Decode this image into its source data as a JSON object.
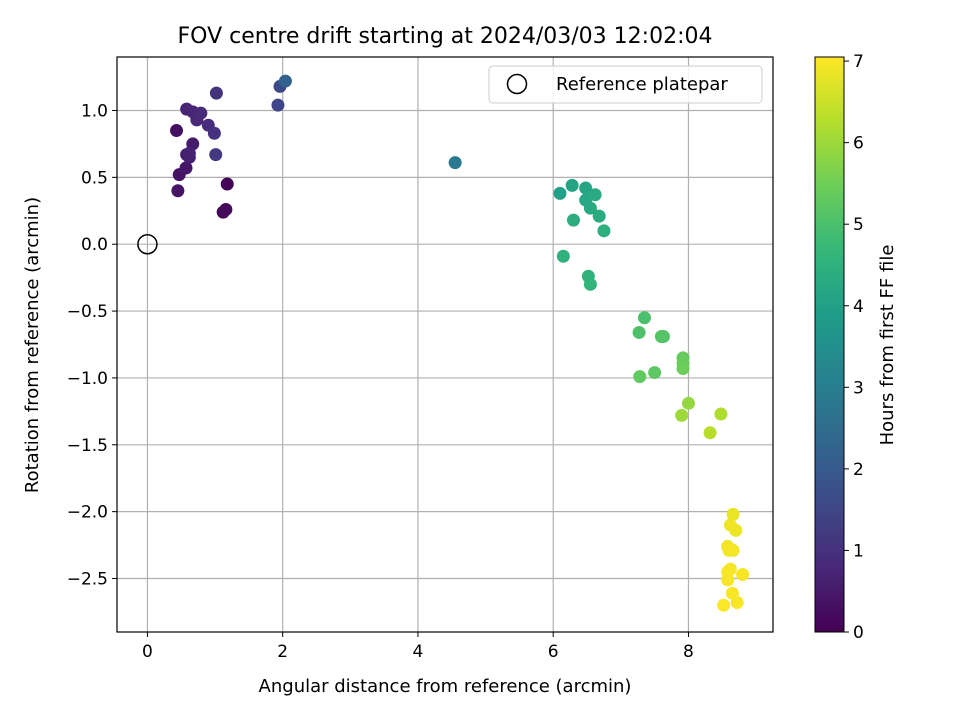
{
  "chart_data": {
    "type": "scatter",
    "title": "FOV centre drift starting at 2024/03/03 12:02:04",
    "xlabel": "Angular distance from reference (arcmin)",
    "ylabel": "Rotation from reference (arcmin)",
    "xlim": [
      -0.45,
      9.25
    ],
    "ylim": [
      -2.9,
      1.4
    ],
    "xticks": [
      0,
      2,
      4,
      6,
      8
    ],
    "xtick_labels": [
      "0",
      "2",
      "4",
      "6",
      "8"
    ],
    "yticks": [
      -2.5,
      -2.0,
      -1.5,
      -1.0,
      -0.5,
      0.0,
      0.5,
      1.0
    ],
    "ytick_labels": [
      "−2.5",
      "−2.0",
      "−1.5",
      "−1.0",
      "−0.5",
      "0.0",
      "0.5",
      "1.0"
    ],
    "grid": true,
    "legend": {
      "location": "top-right",
      "entries": [
        {
          "label": "Reference platepar",
          "marker": "open-circle"
        }
      ]
    },
    "reference_point": {
      "x": 0.0,
      "y": 0.0
    },
    "colorbar": {
      "label": "Hours from first FF file",
      "range": [
        0,
        7.05
      ],
      "ticks": [
        0,
        1,
        2,
        3,
        4,
        5,
        6,
        7
      ],
      "tick_labels": [
        "0",
        "1",
        "2",
        "3",
        "4",
        "5",
        "6",
        "7"
      ],
      "colormap": "viridis"
    },
    "colormap_stops": [
      "#440154",
      "#482878",
      "#3e4989",
      "#31688e",
      "#26828e",
      "#1f9e89",
      "#35b779",
      "#6ece58",
      "#b5de2b",
      "#fde725"
    ],
    "series": [
      {
        "points": [
          {
            "x": 1.18,
            "y": 0.45,
            "h": 0.05
          },
          {
            "x": 1.12,
            "y": 0.24,
            "h": 0.1
          },
          {
            "x": 1.16,
            "y": 0.26,
            "h": 0.15
          },
          {
            "x": 0.43,
            "y": 0.85,
            "h": 0.3
          },
          {
            "x": 0.47,
            "y": 0.52,
            "h": 0.35
          },
          {
            "x": 0.45,
            "y": 0.4,
            "h": 0.4
          },
          {
            "x": 0.57,
            "y": 0.57,
            "h": 0.45
          },
          {
            "x": 0.58,
            "y": 0.67,
            "h": 0.5
          },
          {
            "x": 0.67,
            "y": 0.75,
            "h": 0.55
          },
          {
            "x": 0.62,
            "y": 0.65,
            "h": 0.6
          },
          {
            "x": 0.62,
            "y": 0.68,
            "h": 0.65
          },
          {
            "x": 0.58,
            "y": 1.01,
            "h": 0.7
          },
          {
            "x": 0.67,
            "y": 0.99,
            "h": 0.75
          },
          {
            "x": 0.73,
            "y": 0.93,
            "h": 0.8
          },
          {
            "x": 0.79,
            "y": 0.98,
            "h": 0.85
          },
          {
            "x": 0.9,
            "y": 0.89,
            "h": 0.9
          },
          {
            "x": 0.99,
            "y": 0.83,
            "h": 1.0
          },
          {
            "x": 1.02,
            "y": 1.13,
            "h": 1.05
          },
          {
            "x": 1.01,
            "y": 0.67,
            "h": 1.2
          },
          {
            "x": 1.93,
            "y": 1.04,
            "h": 1.5
          },
          {
            "x": 1.96,
            "y": 1.18,
            "h": 1.6
          },
          {
            "x": 2.04,
            "y": 1.22,
            "h": 2.2
          },
          {
            "x": 4.55,
            "y": 0.61,
            "h": 2.9
          },
          {
            "x": 6.1,
            "y": 0.38,
            "h": 4.0
          },
          {
            "x": 6.28,
            "y": 0.44,
            "h": 4.1
          },
          {
            "x": 6.48,
            "y": 0.42,
            "h": 4.15
          },
          {
            "x": 6.48,
            "y": 0.33,
            "h": 4.2
          },
          {
            "x": 6.55,
            "y": 0.27,
            "h": 4.25
          },
          {
            "x": 6.62,
            "y": 0.37,
            "h": 4.3
          },
          {
            "x": 6.68,
            "y": 0.21,
            "h": 4.35
          },
          {
            "x": 6.3,
            "y": 0.18,
            "h": 4.4
          },
          {
            "x": 6.75,
            "y": 0.1,
            "h": 4.45
          },
          {
            "x": 6.15,
            "y": -0.09,
            "h": 4.5
          },
          {
            "x": 6.52,
            "y": -0.24,
            "h": 4.55
          },
          {
            "x": 6.55,
            "y": -0.3,
            "h": 4.6
          },
          {
            "x": 7.35,
            "y": -0.55,
            "h": 5.0
          },
          {
            "x": 7.27,
            "y": -0.66,
            "h": 5.05
          },
          {
            "x": 7.63,
            "y": -0.69,
            "h": 5.1
          },
          {
            "x": 7.6,
            "y": -0.69,
            "h": 5.15
          },
          {
            "x": 7.92,
            "y": -0.85,
            "h": 5.35
          },
          {
            "x": 7.92,
            "y": -0.89,
            "h": 5.4
          },
          {
            "x": 7.92,
            "y": -0.93,
            "h": 5.45
          },
          {
            "x": 7.28,
            "y": -0.99,
            "h": 5.3
          },
          {
            "x": 7.5,
            "y": -0.96,
            "h": 5.25
          },
          {
            "x": 8.0,
            "y": -1.19,
            "h": 5.9
          },
          {
            "x": 7.9,
            "y": -1.28,
            "h": 6.0
          },
          {
            "x": 8.48,
            "y": -1.27,
            "h": 6.2
          },
          {
            "x": 8.32,
            "y": -1.41,
            "h": 6.3
          },
          {
            "x": 8.66,
            "y": -2.02,
            "h": 6.85
          },
          {
            "x": 8.62,
            "y": -2.1,
            "h": 6.9
          },
          {
            "x": 8.7,
            "y": -2.14,
            "h": 6.88
          },
          {
            "x": 8.58,
            "y": -2.26,
            "h": 6.92
          },
          {
            "x": 8.66,
            "y": -2.29,
            "h": 6.94
          },
          {
            "x": 8.6,
            "y": -2.29,
            "h": 6.93
          },
          {
            "x": 8.62,
            "y": -2.43,
            "h": 6.95
          },
          {
            "x": 8.58,
            "y": -2.45,
            "h": 6.96
          },
          {
            "x": 8.8,
            "y": -2.47,
            "h": 6.97
          },
          {
            "x": 8.58,
            "y": -2.51,
            "h": 6.98
          },
          {
            "x": 8.65,
            "y": -2.61,
            "h": 6.99
          },
          {
            "x": 8.72,
            "y": -2.68,
            "h": 7.0
          },
          {
            "x": 8.52,
            "y": -2.7,
            "h": 7.02
          }
        ]
      }
    ]
  }
}
